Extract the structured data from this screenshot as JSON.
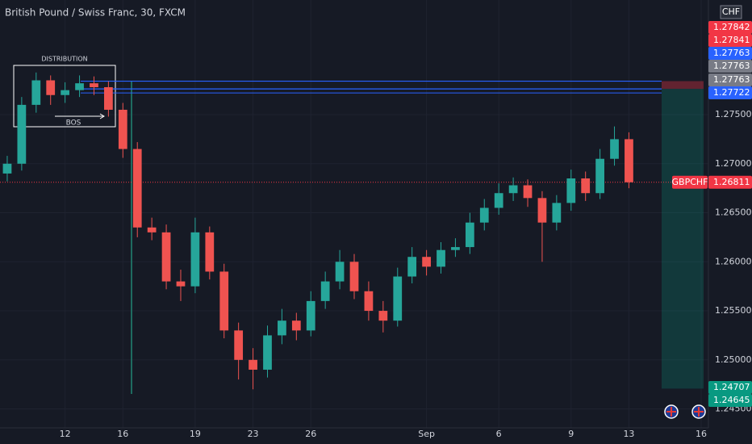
{
  "chart_data": {
    "type": "candlestick",
    "title": "British Pound / Swiss Franc, 30, FXCM",
    "categories": [
      null,
      null,
      null,
      null,
      "12",
      null,
      null,
      null,
      "16",
      null,
      null,
      null,
      null,
      "19",
      null,
      null,
      null,
      "23",
      null,
      null,
      null,
      "26",
      null,
      null,
      null,
      null,
      null,
      null,
      null,
      "Sep",
      null,
      null,
      null,
      null,
      "6",
      null,
      null,
      null,
      null,
      "9",
      null,
      null,
      null,
      "13",
      null,
      null,
      null,
      null,
      "16"
    ],
    "open": [
      1.269,
      1.27,
      1.276,
      1.2785,
      1.277,
      1.2775,
      1.2782,
      1.2778,
      1.2755,
      1.2715,
      1.2635,
      1.263,
      1.258,
      1.2575,
      1.263,
      1.259,
      1.253,
      1.25,
      1.249,
      1.2525,
      1.254,
      1.253,
      1.256,
      1.258,
      1.26,
      1.257,
      1.255,
      1.254,
      1.2585,
      1.2605,
      1.2595,
      1.2612,
      1.2615,
      1.264,
      1.2655,
      1.267,
      1.2678,
      1.2665,
      1.264,
      1.266,
      1.2685,
      1.267,
      1.2705,
      1.2725,
      null,
      null,
      null,
      null,
      null
    ],
    "high": [
      1.2708,
      1.2768,
      1.2793,
      1.279,
      1.2783,
      1.279,
      1.2789,
      1.2784,
      1.2762,
      1.2722,
      1.2645,
      1.2638,
      1.2592,
      1.2645,
      1.2636,
      1.2598,
      1.2538,
      1.2512,
      1.2535,
      1.2552,
      1.2548,
      1.257,
      1.259,
      1.2612,
      1.2608,
      1.258,
      1.256,
      1.2594,
      1.2615,
      1.2612,
      1.262,
      1.2624,
      1.265,
      1.2664,
      1.268,
      1.2686,
      1.2684,
      1.2672,
      1.2668,
      1.2694,
      1.2692,
      1.2715,
      1.2738,
      1.2732,
      null,
      null,
      null,
      null,
      null
    ],
    "low": [
      1.2682,
      1.2693,
      1.2752,
      1.276,
      1.2762,
      1.2768,
      1.277,
      1.2748,
      1.2706,
      1.2625,
      1.2622,
      1.2572,
      1.256,
      1.2568,
      1.2582,
      1.2522,
      1.248,
      1.247,
      1.2482,
      1.2516,
      1.252,
      1.2524,
      1.2552,
      1.2572,
      1.2562,
      1.254,
      1.2528,
      1.2534,
      1.2578,
      1.2586,
      1.2588,
      1.2605,
      1.2608,
      1.2632,
      1.2648,
      1.2662,
      1.2656,
      1.26,
      1.2632,
      1.2652,
      1.2662,
      1.2664,
      1.2698,
      1.2675,
      null,
      null,
      null,
      null,
      null
    ],
    "close": [
      1.27,
      1.276,
      1.2785,
      1.277,
      1.2775,
      1.2782,
      1.2778,
      1.2755,
      1.2715,
      1.2635,
      1.263,
      1.258,
      1.2575,
      1.263,
      1.259,
      1.253,
      1.25,
      1.249,
      1.2525,
      1.254,
      1.253,
      1.256,
      1.258,
      1.26,
      1.257,
      1.255,
      1.254,
      1.2585,
      1.2605,
      1.2595,
      1.2612,
      1.2615,
      1.264,
      1.2655,
      1.267,
      1.2678,
      1.2665,
      1.264,
      1.266,
      1.2685,
      1.267,
      1.2705,
      1.2725,
      1.26811,
      null,
      null,
      null,
      null,
      null
    ],
    "up_color": "#26a69a",
    "down_color": "#ef5350",
    "ylim": [
      1.24307,
      1.28669
    ],
    "yticks": [
      {
        "value": 1.275,
        "label": "1.27500"
      },
      {
        "value": 1.27,
        "label": "1.27000"
      },
      {
        "value": 1.265,
        "label": "1.26500"
      },
      {
        "value": 1.26,
        "label": "1.26000"
      },
      {
        "value": 1.255,
        "label": "1.25500"
      },
      {
        "value": 1.25,
        "label": "1.25000"
      },
      {
        "value": 1.245,
        "label": "1.24500"
      }
    ],
    "grid": true,
    "currency": "CHF",
    "line_color": "#2962ff",
    "levels": [
      {
        "value": 1.27842,
        "color": "#f23645"
      },
      {
        "value": 1.27841,
        "color": "#f23645"
      },
      {
        "value": 1.27763,
        "color": "#2962ff"
      },
      {
        "value": 1.27763,
        "color": "#787b86"
      },
      {
        "value": 1.27763,
        "color": "#787b86"
      },
      {
        "value": 1.27722,
        "color": "#2962ff"
      }
    ],
    "last_price": {
      "symbol": "GBPCHF",
      "value": 1.26811,
      "color": "#f23645"
    },
    "position": {
      "stop": 1.27842,
      "entry": 1.27763,
      "target": 1.24707,
      "stop_color": "#f23645",
      "target_color": "#089981"
    },
    "target_labels": [
      1.24707,
      1.24645
    ],
    "annotations": [
      "DISTRIBUTION",
      "BOS"
    ]
  }
}
